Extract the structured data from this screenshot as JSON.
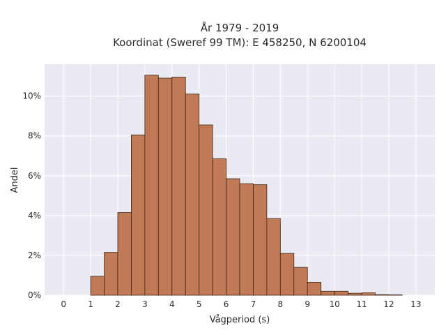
{
  "chart_data": {
    "type": "bar",
    "title_lines": [
      "År 1979 - 2019",
      "Koordinat (Sweref 99 TM): E 458250, N 6200104"
    ],
    "xlabel": "Vågperiod (s)",
    "ylabel": "Andel",
    "bin_width": 0.5,
    "bin_starts": [
      0,
      0.5,
      1,
      1.5,
      2,
      2.5,
      3,
      3.5,
      4,
      4.5,
      5,
      5.5,
      6,
      6.5,
      7,
      7.5,
      8,
      8.5,
      9,
      9.5,
      10,
      10.5,
      11,
      11.5,
      12,
      12.5
    ],
    "values": [
      0.0,
      0.0,
      0.95,
      2.15,
      4.15,
      8.05,
      11.05,
      10.9,
      10.95,
      10.1,
      8.55,
      6.85,
      5.85,
      5.6,
      5.55,
      3.85,
      2.1,
      1.4,
      0.65,
      0.2,
      0.2,
      0.1,
      0.12,
      0.03,
      0.02,
      0.0
    ],
    "x_ticks": [
      0,
      1,
      2,
      3,
      4,
      5,
      6,
      7,
      8,
      9,
      10,
      11,
      12,
      13
    ],
    "y_ticks": [
      0,
      2,
      4,
      6,
      8,
      10
    ],
    "y_tick_labels": [
      "0%",
      "2%",
      "4%",
      "6%",
      "8%",
      "10%"
    ],
    "xlim": [
      -0.7,
      13.7
    ],
    "ylim": [
      0,
      11.6
    ],
    "grid": true,
    "colors": {
      "bar": "#c07a55",
      "bar_edge": "#3d2418",
      "plot_bg": "#eaeaf2",
      "grid": "#ffffff"
    }
  }
}
